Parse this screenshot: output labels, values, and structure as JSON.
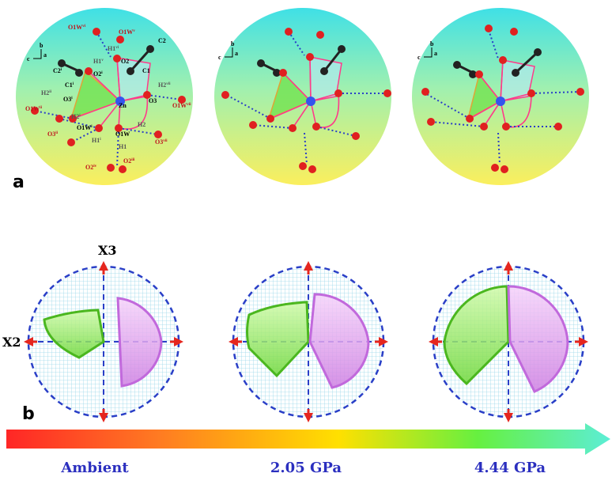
{
  "panel_a": {
    "label": "a",
    "axes_labels": {
      "c": "c",
      "b": "b",
      "a": "a"
    },
    "atoms": {
      "O1W_vi": "O1W",
      "O1W_vi_sup": "vi",
      "O1W_v": "O1W",
      "O1W_v_sup": "v",
      "H1_vi": "H1",
      "H1_vi_sup": "vi",
      "H1_v": "H1",
      "H1_v_sup": "v",
      "O2_top": "O2",
      "O2_i": "O2",
      "O2_i_sup": "i",
      "C2_top": "C2",
      "C1": "C1",
      "C1_i": "C1",
      "C1_i_sup": "i",
      "C2_i": "C2",
      "C2_i_sup": "i",
      "H2_ii": "H2",
      "H2_ii_sup": "ii",
      "O3_i": "O3",
      "O3_i_sup": "i",
      "Zn": "Zn",
      "O3": "O3",
      "H2_vii": "H2",
      "H2_vii_sup": "vii",
      "O1W_vii": "O1W",
      "O1W_vii_sup": "vii",
      "O1W_ii": "O1W",
      "O1W_ii_sup": "ii",
      "H2_i": "H2",
      "H2_i_sup": "i",
      "O1W_i": "O1W",
      "O1W_i_sup": "i",
      "O1W": "O1W",
      "O3_ii": "O3",
      "O3_ii_sup": "ii",
      "H2": "H2",
      "O3_vii": "O3",
      "O3_vii_sup": "vii",
      "H1_i": "H1",
      "H1_i_sup": "i",
      "H1": "H1",
      "O2_iv": "O2",
      "O2_iv_sup": "iv",
      "O2_iii": "O2",
      "O2_iii_sup": "iii"
    }
  },
  "panel_b": {
    "label": "b",
    "axis_x3": "X3",
    "axis_x2": "X2"
  },
  "pressure_bar": {
    "labels": [
      "Ambient",
      "2.05 GPa",
      "4.44 GPa"
    ],
    "gradient_colors": [
      "#ff2a2a",
      "#ffdd00",
      "#6dfb3a",
      "#5ef0c8"
    ]
  },
  "colors": {
    "sphere_top": "#4fe3df",
    "sphere_bottom": "#f7ef63",
    "green_sector": "#7ee04a",
    "purple_sector": "#d88ee8",
    "dashed_blue": "#2a3fc7",
    "arrow_red": "#e5261e",
    "label_blue": "#2b2fbf",
    "label_red": "#c0121b"
  }
}
